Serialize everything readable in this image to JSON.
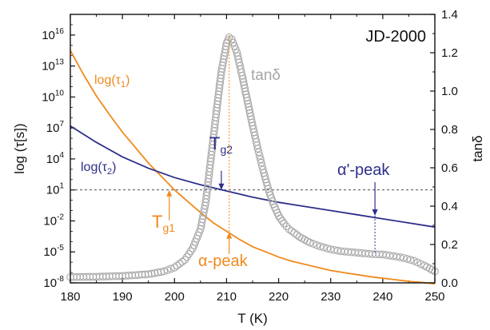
{
  "chart_data": {
    "type": "line",
    "title": "JD-2000",
    "xlabel": "T (K)",
    "ylabel_left": "log (τ[s])",
    "ylabel_right": "tanδ",
    "xlim": [
      180,
      250
    ],
    "ylim_left_log10": [
      -8,
      18
    ],
    "ylim_right": [
      0.0,
      1.4
    ],
    "x_ticks": [
      180,
      190,
      200,
      210,
      220,
      230,
      240,
      250
    ],
    "y_left_ticks": [
      {
        "exp": -8,
        "base": "10",
        "sup": "-8"
      },
      {
        "exp": -5,
        "base": "10",
        "sup": "-5"
      },
      {
        "exp": -2,
        "base": "10",
        "sup": "-2"
      },
      {
        "exp": 1,
        "base": "10",
        "sup": "1"
      },
      {
        "exp": 4,
        "base": "10",
        "sup": "4"
      },
      {
        "exp": 7,
        "base": "10",
        "sup": "7"
      },
      {
        "exp": 10,
        "base": "10",
        "sup": "10"
      },
      {
        "exp": 13,
        "base": "10",
        "sup": "13"
      },
      {
        "exp": 16,
        "base": "10",
        "sup": "16"
      }
    ],
    "y_right_ticks": [
      "0.0",
      "0.2",
      "0.4",
      "0.6",
      "0.8",
      "1.0",
      "1.2",
      "1.4"
    ],
    "series": [
      {
        "name": "log(τ1)",
        "axis": "left",
        "color": "#ef8a1e",
        "x": [
          180,
          182.5,
          185,
          187.5,
          190,
          192.5,
          195,
          197.5,
          200,
          202.5,
          205,
          207.5,
          210,
          212.5,
          215,
          217.5,
          220,
          222.5,
          225,
          227.5,
          230,
          232.5,
          235,
          237.5,
          240,
          242.5,
          245,
          247.5,
          250
        ],
        "log10_tau": [
          14.5,
          12.2,
          10.1,
          8.3,
          6.6,
          5.1,
          3.6,
          2.3,
          1.0,
          -0.1,
          -1.2,
          -2.2,
          -3.0,
          -3.8,
          -4.5,
          -5.0,
          -5.5,
          -5.9,
          -6.2,
          -6.5,
          -6.8,
          -7.0,
          -7.2,
          -7.4,
          -7.55,
          -7.7,
          -7.85,
          -7.95,
          -8.1
        ]
      },
      {
        "name": "log(τ2)",
        "axis": "left",
        "color": "#2d2f8a",
        "x": [
          180,
          185,
          190,
          195,
          200,
          205,
          210,
          215,
          220,
          225,
          230,
          235,
          240,
          245,
          250
        ],
        "log10_tau": [
          7.2,
          5.6,
          4.2,
          3.1,
          2.2,
          1.5,
          0.9,
          0.3,
          -0.2,
          -0.6,
          -1.0,
          -1.4,
          -1.8,
          -2.2,
          -2.6
        ]
      },
      {
        "name": "tanδ",
        "axis": "right",
        "color": "#a6a6a6",
        "marker": "open-circle",
        "x": [
          180,
          185,
          190,
          195,
          198,
          200,
          202,
          203.5,
          205,
          206,
          207,
          208,
          209,
          210,
          210.5,
          211,
          212,
          213,
          214,
          215,
          216,
          217,
          218,
          219,
          220,
          221,
          222,
          224,
          226,
          228,
          230,
          232,
          234,
          236,
          238,
          240,
          242,
          244,
          246,
          248,
          250
        ],
        "values": [
          0.03,
          0.032,
          0.036,
          0.045,
          0.06,
          0.08,
          0.12,
          0.18,
          0.28,
          0.42,
          0.65,
          0.88,
          1.1,
          1.25,
          1.28,
          1.27,
          1.2,
          1.08,
          0.95,
          0.82,
          0.7,
          0.59,
          0.49,
          0.41,
          0.35,
          0.31,
          0.28,
          0.24,
          0.21,
          0.19,
          0.175,
          0.165,
          0.16,
          0.155,
          0.15,
          0.148,
          0.14,
          0.13,
          0.115,
          0.09,
          0.06
        ]
      }
    ],
    "reference_line_log10_tau": 1,
    "annotations": {
      "tg1_x": 199,
      "tg2_x": 209,
      "alpha_peak_x": 210.5,
      "alpha_prime_peak_x": 238.5,
      "alpha_prime_peak_tan": 0.155
    }
  },
  "labels": {
    "tau1_main": "log(τ",
    "tau1_sub": "1",
    "tau2_main": "log(τ",
    "tau2_sub": "2",
    "close_paren": ")",
    "tan": "tanδ",
    "tg_main": "T",
    "tg1_sub": "g1",
    "tg2_sub": "g2",
    "alpha_peak": "α-peak",
    "alpha_prime_peak": "α'-peak"
  }
}
